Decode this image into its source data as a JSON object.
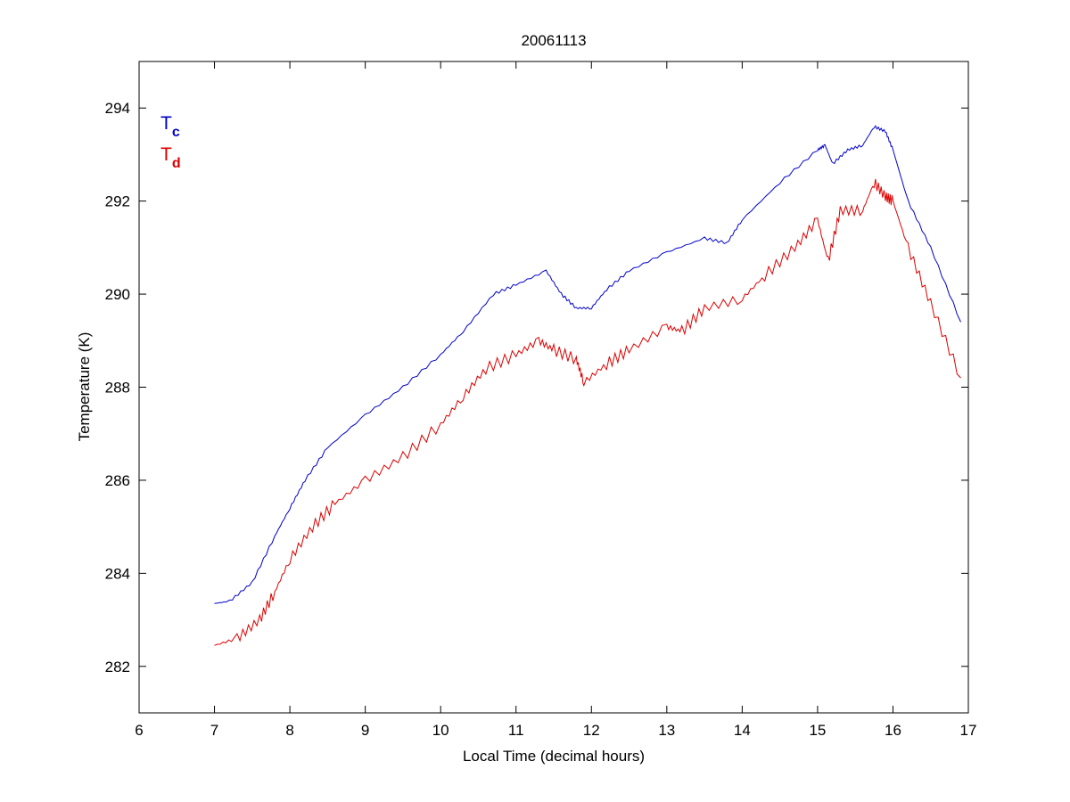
{
  "chart_data": {
    "type": "line",
    "title": "20061113",
    "xlabel": "Local Time (decimal hours)",
    "ylabel": "Temperature (K)",
    "xlim": [
      6,
      17
    ],
    "ylim": [
      281,
      295
    ],
    "xticks": [
      6,
      7,
      8,
      9,
      10,
      11,
      12,
      13,
      14,
      15,
      16,
      17
    ],
    "yticks": [
      282,
      284,
      286,
      288,
      290,
      292,
      294
    ],
    "grid": false,
    "legend_placement": "top-left",
    "series": [
      {
        "name": "Tc",
        "label_main": "T",
        "label_sub": "c",
        "color": "#0000cc",
        "x": [
          7.0,
          7.2,
          7.5,
          7.8,
          8.0,
          8.2,
          8.5,
          9.0,
          9.5,
          10.0,
          10.3,
          10.7,
          11.0,
          11.4,
          11.6,
          11.8,
          12.0,
          12.2,
          12.5,
          13.0,
          13.5,
          13.8,
          14.0,
          14.5,
          15.0,
          15.1,
          15.2,
          15.4,
          15.6,
          15.75,
          15.9,
          16.0,
          16.2,
          16.5,
          16.9
        ],
        "y": [
          283.35,
          283.4,
          283.8,
          284.8,
          285.4,
          286.0,
          286.7,
          287.4,
          288.0,
          288.7,
          289.2,
          290.0,
          290.2,
          290.5,
          290.0,
          289.7,
          289.7,
          290.1,
          290.5,
          290.9,
          291.2,
          291.1,
          291.6,
          292.4,
          293.1,
          293.2,
          292.8,
          293.1,
          293.2,
          293.6,
          293.5,
          293.1,
          292.0,
          291.0,
          289.4
        ]
      },
      {
        "name": "Td",
        "label_main": "T",
        "label_sub": "d",
        "color": "#dd0000",
        "x": [
          7.0,
          7.3,
          7.6,
          7.8,
          8.0,
          8.3,
          8.6,
          9.0,
          9.5,
          10.0,
          10.3,
          10.6,
          11.0,
          11.3,
          11.5,
          11.8,
          11.9,
          12.2,
          12.5,
          13.0,
          13.2,
          13.5,
          14.0,
          14.3,
          14.7,
          15.0,
          15.14,
          15.3,
          15.6,
          15.75,
          15.9,
          16.0,
          16.2,
          16.5,
          16.9
        ],
        "y": [
          282.45,
          282.6,
          283.0,
          283.6,
          284.3,
          285.0,
          285.5,
          286.0,
          286.5,
          287.2,
          287.8,
          288.4,
          288.7,
          289.0,
          288.8,
          288.6,
          288.1,
          288.5,
          288.8,
          289.3,
          289.2,
          289.7,
          289.9,
          290.4,
          291.0,
          291.6,
          290.7,
          291.8,
          291.8,
          292.4,
          292.1,
          292.0,
          291.0,
          289.8,
          288.2
        ]
      }
    ]
  }
}
